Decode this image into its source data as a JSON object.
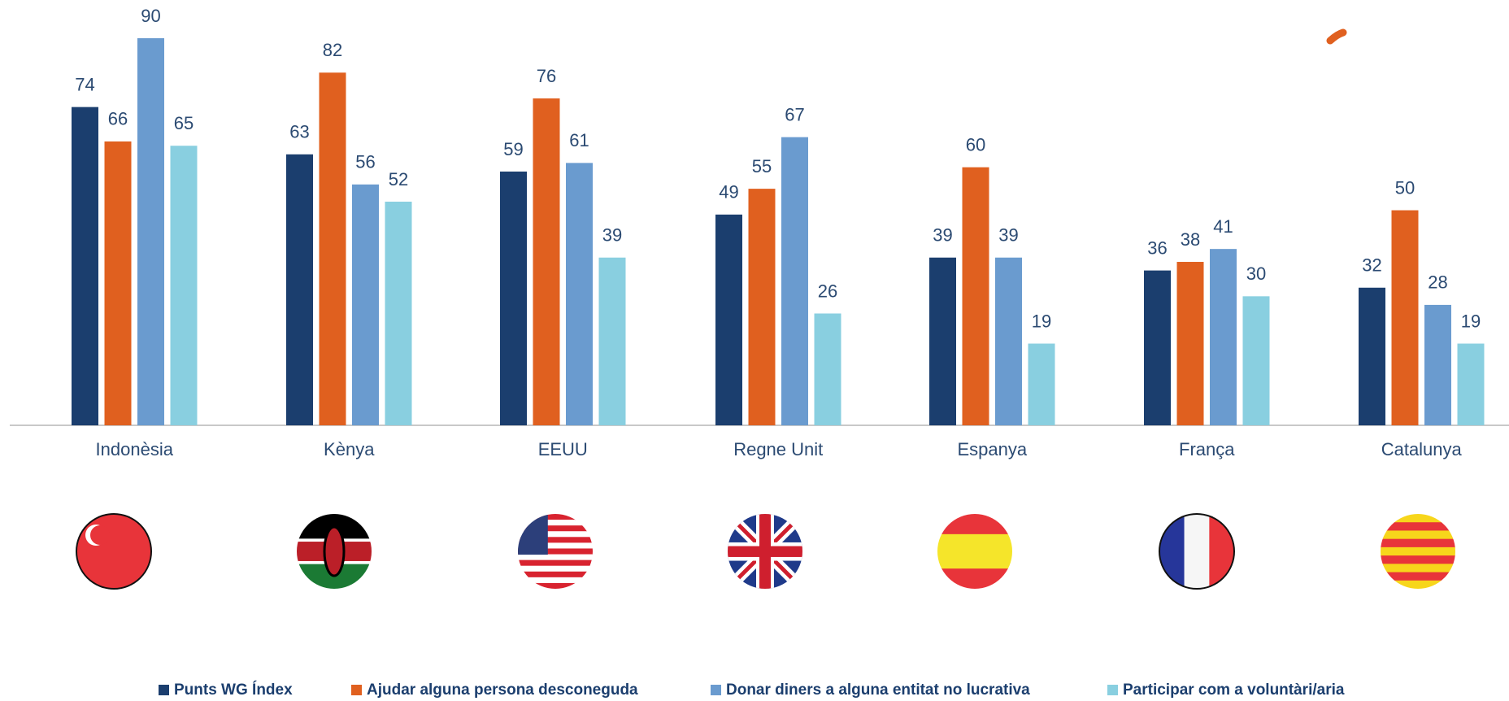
{
  "chart_data": {
    "type": "bar",
    "categories": [
      "Indonèsia",
      "Kènya",
      "EEUU",
      "Regne Unit",
      "Espanya",
      "França",
      "Catalunya"
    ],
    "series": [
      {
        "name": "Punts WG Índex",
        "color": "#1b3e6e",
        "values": [
          74,
          63,
          59,
          49,
          39,
          36,
          32
        ]
      },
      {
        "name": "Ajudar alguna persona desconeguda",
        "color": "#e0601f",
        "values": [
          66,
          82,
          76,
          55,
          60,
          38,
          50
        ]
      },
      {
        "name": "Donar diners a alguna entitat no lucrativa",
        "color": "#6a9bcf",
        "values": [
          90,
          56,
          61,
          67,
          39,
          41,
          28
        ]
      },
      {
        "name": "Participar com a voluntàri/aria",
        "color": "#89cfe0",
        "values": [
          65,
          52,
          39,
          26,
          19,
          30,
          19
        ]
      }
    ]
  }
}
